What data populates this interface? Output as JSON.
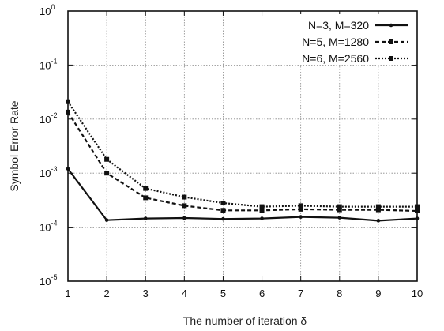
{
  "chart_data": {
    "type": "line",
    "title": "",
    "xlabel": "The number of iteration δ",
    "ylabel": "Symbol Error Rate",
    "x": [
      1,
      2,
      3,
      4,
      5,
      6,
      7,
      8,
      9,
      10
    ],
    "xlim": [
      1,
      10
    ],
    "ylim": [
      1e-05,
      1
    ],
    "yscale": "log",
    "grid": true,
    "legend_position": "top-right",
    "x_ticks": [
      "1",
      "2",
      "3",
      "4",
      "5",
      "6",
      "7",
      "8",
      "9",
      "10"
    ],
    "y_ticks": [
      {
        "value": 1e-05,
        "base": "10",
        "exp": "-5"
      },
      {
        "value": 0.0001,
        "base": "10",
        "exp": "-4"
      },
      {
        "value": 0.001,
        "base": "10",
        "exp": "-3"
      },
      {
        "value": 0.01,
        "base": "10",
        "exp": "-2"
      },
      {
        "value": 0.1,
        "base": "10",
        "exp": "-1"
      },
      {
        "value": 1,
        "base": "10",
        "exp": "0"
      }
    ],
    "series": [
      {
        "name": "N=3, M=320",
        "line_style": "solid",
        "color": "#111111",
        "values": [
          0.0012,
          0.000135,
          0.000145,
          0.000148,
          0.000142,
          0.000145,
          0.000155,
          0.00015,
          0.000132,
          0.000145
        ]
      },
      {
        "name": "N=5, M=1280",
        "line_style": "dashed",
        "color": "#111111",
        "values": [
          0.0135,
          0.001,
          0.00035,
          0.00025,
          0.000205,
          0.000205,
          0.000215,
          0.00021,
          0.00021,
          0.0002
        ]
      },
      {
        "name": "N=6, M=2560",
        "line_style": "dotted",
        "color": "#111111",
        "values": [
          0.021,
          0.0018,
          0.00052,
          0.00036,
          0.00028,
          0.00024,
          0.00025,
          0.00024,
          0.00024,
          0.00024
        ]
      }
    ]
  }
}
